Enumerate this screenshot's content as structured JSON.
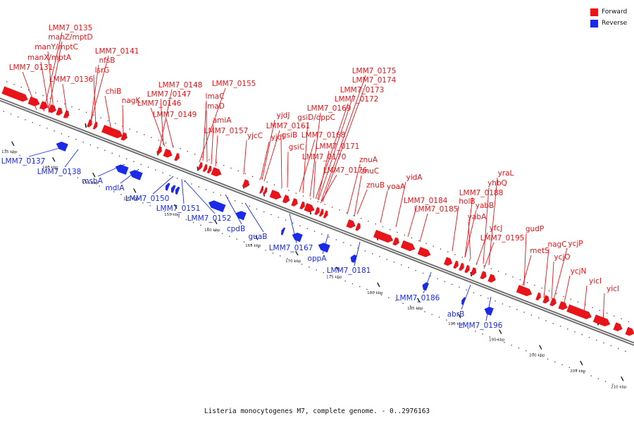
{
  "legend": {
    "forward_label": "Forward",
    "reverse_label": "Reverse",
    "forward_color": "#e8141a",
    "reverse_color": "#1a2ae8"
  },
  "caption": "Listeria monocytogenes M7, complete genome. - 0..2976163",
  "kbp_ticks": [
    "135 kbp",
    "140 kbp",
    "145 kbp",
    "150 kbp",
    "155 kbp",
    "160 kbp",
    "165 kbp",
    "170 kbp",
    "175 kbp",
    "180 kbp",
    "185 kbp",
    "190 kbp",
    "195 kbp",
    "200 kbp",
    "205 kbp",
    "210 kbp"
  ],
  "forward_labels": [
    "LMM7_0135",
    "manZ/mptD",
    "manY/mptC",
    "manX/mptA",
    "LMM7_0131",
    "LMM7_0141",
    "nfsB",
    "lsrG",
    "LMM7_0136",
    "chiB",
    "nagK",
    "LMM7_0148",
    "LMM7_0147",
    "LMM7_0146",
    "LMM7_0149",
    "LMM7_0155",
    "lmaC",
    "lmaD",
    "amiA",
    "LMM7_0157",
    "yjdJ",
    "LMM7_0161",
    "yjdI",
    "gsiB",
    "yjcC",
    "gsiC",
    "LMM7_0175",
    "LMM7_0174",
    "LMM7_0173",
    "LMM7_0172",
    "LMM7_0169",
    "gsiD/oppC",
    "LMM7_0168",
    "LMM7_0171",
    "LMM7_0170",
    "LMM7_0176",
    "znuA",
    "znuC",
    "znuB",
    "yidA",
    "yoaA",
    "LMM7_0184",
    "LMM7_0185",
    "yraL",
    "yhbQ",
    "LMM7_0188",
    "holB",
    "yabB",
    "yabA",
    "yfcJ",
    "LMM7_0195",
    "gudP",
    "metS",
    "nagC",
    "ycjP",
    "ycjO",
    "ycjN",
    "yicI",
    "yicI"
  ],
  "reverse_labels": [
    "LMM7_0137",
    "LMM7_0138",
    "msbA",
    "mdlA",
    "LMM7_0150",
    "LMM7_0151",
    "LMM7_0152",
    "cpdB",
    "guaB",
    "LMM7_0167",
    "oppA",
    "LMM7_0181",
    "LMM7_0186",
    "abrB",
    "LMM7_0196"
  ]
}
